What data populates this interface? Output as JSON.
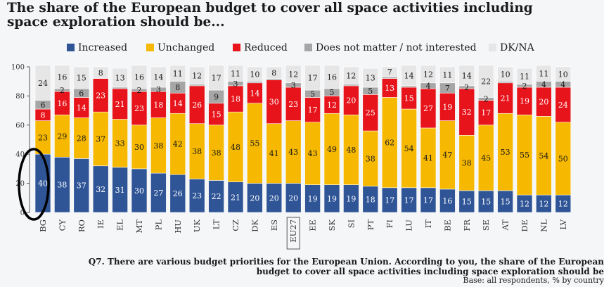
{
  "title": "The share of the European budget to cover all space activities including space exploration should be...",
  "footnote": {
    "line1": "Q7. There are various budget priorities for the European Union. According to you, the share of the European",
    "line2": "budget to cover all space activities including space exploration should be",
    "base": "Base: all respondents, % by country"
  },
  "colors": {
    "Increased": "#2f5597",
    "Unchanged": "#f6b800",
    "Reduced": "#e8141b",
    "Does not matter / not interested": "#a6a6a6",
    "DK/NA": "#e6e6e6",
    "highlight": "#000000"
  },
  "chart_data": {
    "type": "bar",
    "stacked": true,
    "orientation": "vertical",
    "categories": [
      "BG",
      "CY",
      "RO",
      "IE",
      "EL",
      "MT",
      "PL",
      "HU",
      "UK",
      "LT",
      "CZ",
      "DK",
      "ES",
      "EU27",
      "EE",
      "SK",
      "SI",
      "PT",
      "FI",
      "LU",
      "IT",
      "BE",
      "FR",
      "SE",
      "AT",
      "DE",
      "NL",
      "LV"
    ],
    "series": [
      {
        "name": "Increased",
        "values": [
          40,
          38,
          37,
          32,
          31,
          30,
          27,
          26,
          23,
          22,
          21,
          20,
          20,
          20,
          19,
          19,
          19,
          18,
          17,
          17,
          17,
          16,
          15,
          15,
          15,
          12,
          12,
          12
        ]
      },
      {
        "name": "Unchanged",
        "values": [
          23,
          29,
          28,
          37,
          33,
          30,
          38,
          42,
          38,
          38,
          48,
          55,
          41,
          43,
          43,
          49,
          48,
          38,
          62,
          54,
          41,
          47,
          38,
          45,
          53,
          55,
          54,
          50
        ]
      },
      {
        "name": "Reduced",
        "values": [
          8,
          16,
          14,
          23,
          21,
          23,
          18,
          14,
          26,
          15,
          18,
          14,
          30,
          23,
          17,
          12,
          20,
          25,
          13,
          15,
          27,
          19,
          32,
          17,
          21,
          19,
          20,
          24
        ]
      },
      {
        "name": "Does not matter / not interested",
        "values": [
          6,
          2,
          6,
          0,
          1,
          2,
          3,
          8,
          1,
          9,
          3,
          1,
          1,
          3,
          5,
          5,
          1,
          5,
          1,
          1,
          4,
          7,
          2,
          2,
          1,
          2,
          4,
          4
        ]
      },
      {
        "name": "DK/NA",
        "values": [
          24,
          16,
          15,
          8,
          13,
          16,
          14,
          11,
          12,
          17,
          11,
          10,
          8,
          12,
          17,
          16,
          12,
          13,
          7,
          14,
          12,
          11,
          14,
          22,
          10,
          11,
          11,
          10
        ]
      }
    ],
    "ylim": [
      0,
      100
    ],
    "yticks": [
      0,
      20,
      40,
      60,
      80,
      100
    ],
    "label_shown": [
      [
        true,
        true,
        true,
        true,
        true,
        true,
        true,
        true,
        true,
        true,
        true,
        true,
        true,
        true,
        true,
        true,
        true,
        true,
        true,
        true,
        true,
        true,
        true,
        true,
        true,
        true,
        true,
        true
      ],
      [
        true,
        true,
        true,
        true,
        true,
        true,
        true,
        true,
        true,
        true,
        true,
        true,
        true,
        true,
        true,
        true,
        true,
        true,
        true,
        true,
        true,
        true,
        true,
        true,
        true,
        true,
        true,
        true
      ],
      [
        true,
        true,
        true,
        true,
        true,
        true,
        true,
        true,
        true,
        true,
        true,
        true,
        true,
        true,
        true,
        true,
        true,
        true,
        true,
        true,
        true,
        true,
        true,
        true,
        true,
        true,
        true,
        true
      ],
      [
        true,
        true,
        true,
        false,
        false,
        true,
        true,
        true,
        false,
        true,
        true,
        false,
        false,
        true,
        true,
        true,
        false,
        true,
        false,
        false,
        true,
        true,
        true,
        true,
        false,
        true,
        true,
        true
      ],
      [
        true,
        true,
        true,
        true,
        true,
        true,
        true,
        true,
        true,
        true,
        true,
        true,
        true,
        true,
        true,
        true,
        true,
        true,
        true,
        true,
        true,
        true,
        true,
        true,
        true,
        true,
        true,
        true
      ]
    ],
    "legend_position": "top",
    "highlighted_category": "EU27",
    "circled_category": "BG",
    "grid": false
  }
}
